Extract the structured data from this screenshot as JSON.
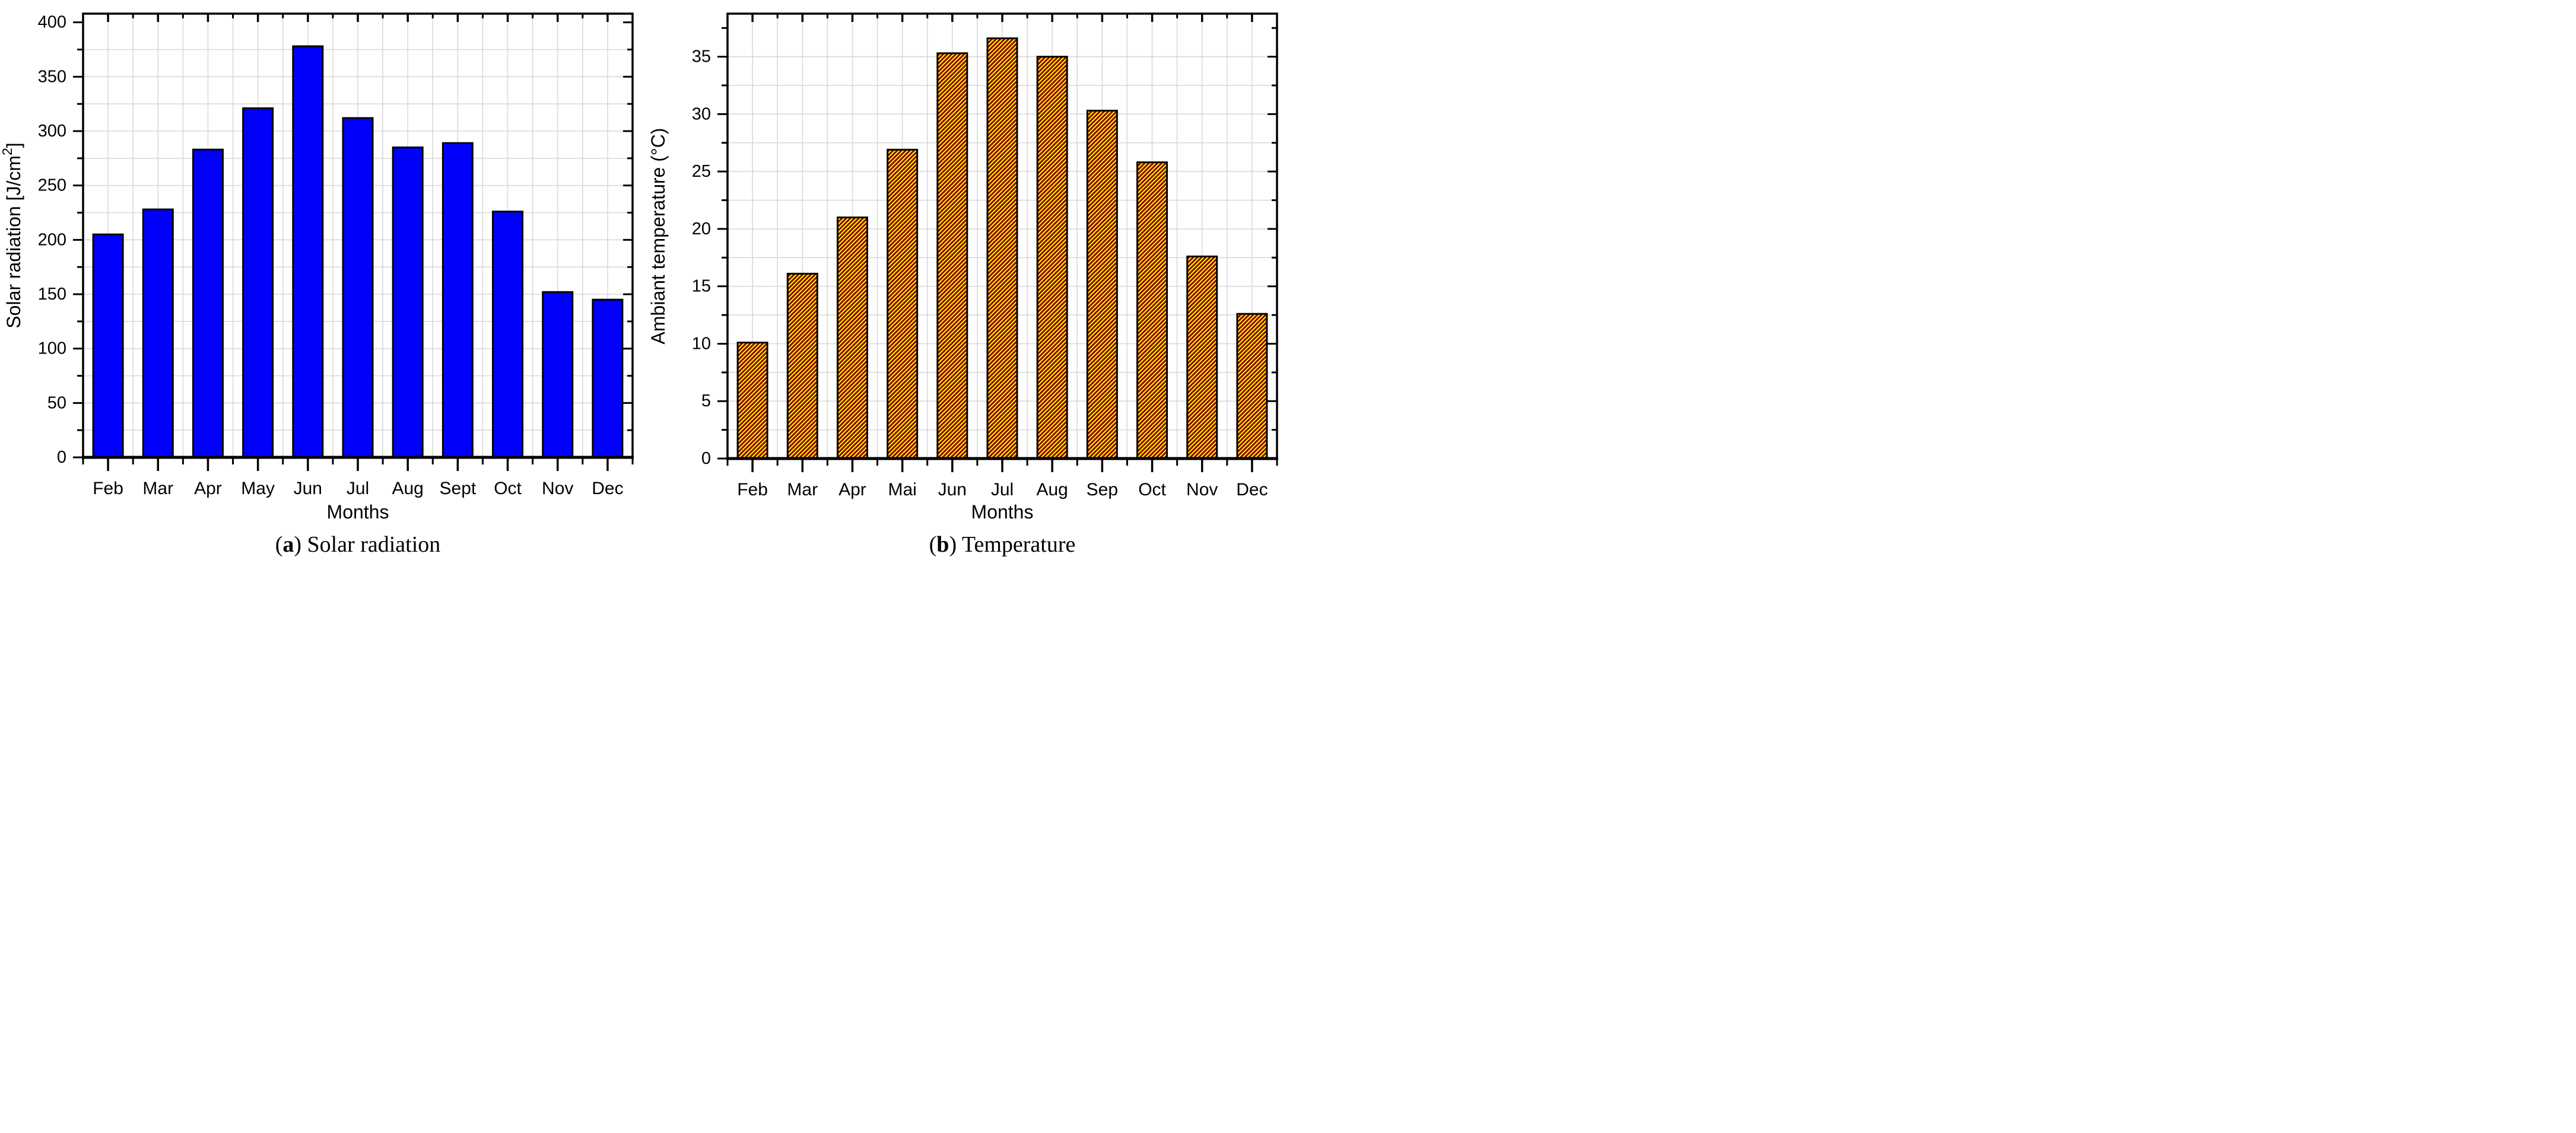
{
  "figure_title": "",
  "captions": [
    {
      "open": "(",
      "letter": "a",
      "close": ") ",
      "text": "Solar radiation"
    },
    {
      "open": "(",
      "letter": "b",
      "close": ") ",
      "text": "Temperature"
    }
  ],
  "chart_data": [
    {
      "type": "bar",
      "title": "(a) Solar radiation",
      "categories": [
        "Feb",
        "Mar",
        "Apr",
        "May",
        "Jun",
        "Jul",
        "Aug",
        "Sept",
        "Oct",
        "Nov",
        "Dec"
      ],
      "values": [
        205,
        228,
        283,
        321,
        378,
        312,
        285,
        289,
        226,
        152,
        145
      ],
      "xlabel": "Months",
      "ylabel_main": "Solar radiation [J/cm",
      "ylabel_sup": "2",
      "ylabel_suffix": "]",
      "ylim": [
        0,
        408
      ],
      "yticks_major": 50,
      "yticks_minor": 25,
      "ytick_labels": [
        "0",
        "50",
        "100",
        "150",
        "200",
        "250",
        "300",
        "350",
        "400"
      ],
      "grid": true,
      "legend": "none",
      "bar_color": "#0000fa",
      "bar_edge": "#000000",
      "hatch_color": null
    },
    {
      "type": "bar",
      "title": "(b) Temperature",
      "categories": [
        "Feb",
        "Mar",
        "Apr",
        "Mai",
        "Jun",
        "Jul",
        "Aug",
        "Sep",
        "Oct",
        "Nov",
        "Dec"
      ],
      "values": [
        10.1,
        16.1,
        21.0,
        26.9,
        35.3,
        36.6,
        35.0,
        30.3,
        25.8,
        17.6,
        12.6
      ],
      "xlabel": "Months",
      "ylabel_main": "Ambiant temperature (°C)",
      "ylabel_sup": "",
      "ylabel_suffix": "",
      "ylim": [
        0,
        38.75
      ],
      "yticks_major": 5,
      "yticks_minor": 2.5,
      "ytick_labels": [
        "0",
        "5",
        "10",
        "15",
        "20",
        "25",
        "30",
        "35"
      ],
      "grid": true,
      "legend": "none",
      "bar_color": "#8b0000",
      "bar_edge": "#000000",
      "hatch_color": "#ffff00"
    }
  ],
  "grid_color": "#d9d9d9"
}
